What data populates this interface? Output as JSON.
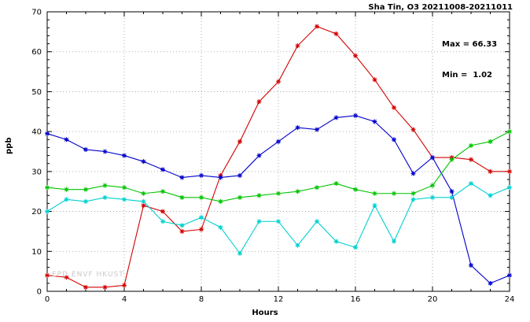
{
  "chart_data": {
    "type": "line",
    "title": "Sha Tin, O3 20211008-20211011",
    "annotation_max": "Max = 66.33",
    "annotation_min": "Min =  1.02",
    "xlabel": "Hours",
    "ylabel": "ppb",
    "watermark": "EPD ENVF HKUST",
    "xlim": [
      0,
      24
    ],
    "ylim": [
      0,
      70
    ],
    "x_ticks": [
      0,
      4,
      8,
      12,
      16,
      20,
      24
    ],
    "y_ticks": [
      0,
      10,
      20,
      30,
      40,
      50,
      60,
      70
    ],
    "grid": true,
    "legend": "none",
    "marker": "asterisk",
    "x": [
      0,
      1,
      2,
      3,
      4,
      5,
      6,
      7,
      8,
      9,
      10,
      11,
      12,
      13,
      14,
      15,
      16,
      17,
      18,
      19,
      20,
      21,
      22,
      23,
      24
    ],
    "series": [
      {
        "name": "red",
        "color": "#d40000",
        "values": [
          4,
          3.5,
          1.02,
          1.02,
          1.5,
          21.5,
          20,
          15,
          15.5,
          29,
          37.5,
          47.5,
          52.5,
          61.5,
          66.33,
          64.5,
          59,
          53,
          46,
          40.5,
          33.5,
          33.5,
          33,
          30,
          30
        ]
      },
      {
        "name": "blue",
        "color": "#0000cd",
        "values": [
          39.5,
          38,
          35.5,
          35,
          34,
          32.5,
          30.5,
          28.5,
          29,
          28.5,
          29,
          34,
          37.5,
          41,
          40.5,
          43.5,
          44,
          42.5,
          38,
          29.5,
          33.5,
          25,
          6.5,
          2,
          4
        ]
      },
      {
        "name": "green",
        "color": "#00c400",
        "values": [
          26,
          25.5,
          25.5,
          26.5,
          26,
          24.5,
          25,
          23.5,
          23.5,
          22.5,
          23.5,
          24,
          24.5,
          25,
          26,
          27,
          25.5,
          24.5,
          24.5,
          24.5,
          26.5,
          33,
          36.5,
          37.5,
          40
        ]
      },
      {
        "name": "cyan",
        "color": "#00d0d0",
        "values": [
          20,
          23,
          22.5,
          23.5,
          23,
          22.5,
          17.5,
          16.5,
          18.5,
          16,
          9.5,
          17.5,
          17.5,
          11.5,
          17.5,
          12.5,
          11,
          21.5,
          12.5,
          23,
          23.5,
          23.5,
          27,
          24,
          26
        ]
      }
    ]
  }
}
